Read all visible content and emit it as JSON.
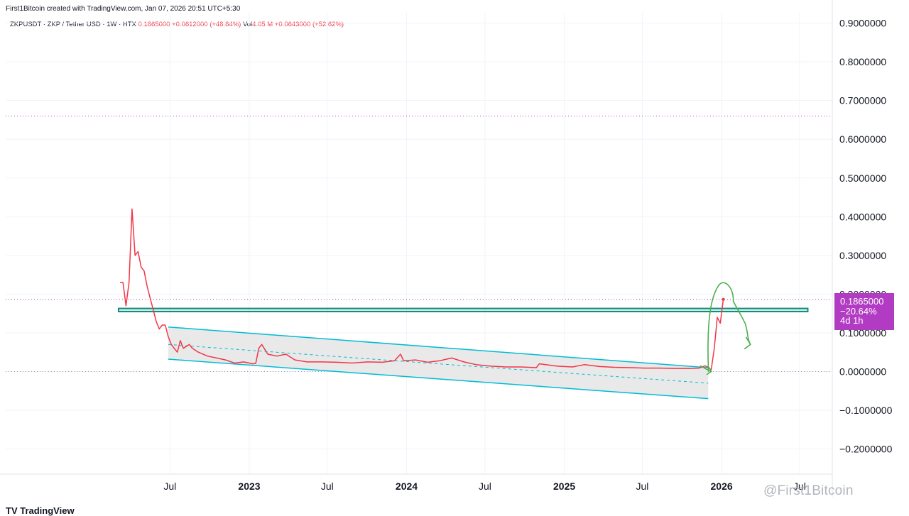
{
  "header": {
    "author_line": "First1Bitcoin created with TradingView.com, Jan 07, 2026 20:51 UTC+5:30",
    "symbol_line": "ZKPUSDT · ZKP / Tether USD · 1W · HTX",
    "last_price": "0.1865000",
    "change": "+0.0612000 (+48.84%)",
    "vol_label": "Vol",
    "vol_value": "4.05 M",
    "vol_change": "+0.0643000 (+52.62%)"
  },
  "price_tag": {
    "price": "0.1865000",
    "change_pct": "−20.64%",
    "countdown": "4d 1h",
    "color": "#b23bc3"
  },
  "colors": {
    "price_line": "#f23645",
    "channel": "#00bcd4",
    "support_zone": "#138a7a",
    "annotation": "#4caf50",
    "dotted_level": "#b23bc3"
  },
  "footer": {
    "logo": "TV TradingView",
    "watermark": "@First1Bitcoin"
  },
  "chart_data": {
    "type": "line",
    "title": "ZKPUSDT · ZKP / Tether USD · 1W · HTX",
    "xlabel": "",
    "ylabel": "",
    "ylim": [
      -0.25,
      0.95
    ],
    "grid": true,
    "y_ticks": [
      "0.9000000",
      "0.8000000",
      "0.7000000",
      "0.6000000",
      "0.5000000",
      "0.4000000",
      "0.3000000",
      "0.2000000",
      "0.1000000",
      "0.0000000",
      "−0.1000000",
      "−0.2000000"
    ],
    "x_ticks": [
      "Jul",
      "2023",
      "Jul",
      "2024",
      "Jul",
      "2025",
      "Jul",
      "2026",
      "Jul"
    ],
    "series": [
      {
        "values": [
          [
            "2022-03-07",
            0.23
          ],
          [
            "2022-03-14",
            0.23
          ],
          [
            "2022-03-21",
            0.17
          ],
          [
            "2022-03-28",
            0.23
          ],
          [
            "2022-04-04",
            0.42
          ],
          [
            "2022-04-11",
            0.3
          ],
          [
            "2022-04-18",
            0.31
          ],
          [
            "2022-04-25",
            0.27
          ],
          [
            "2022-05-02",
            0.26
          ],
          [
            "2022-05-09",
            0.22
          ],
          [
            "2022-05-16",
            0.19
          ],
          [
            "2022-05-23",
            0.16
          ],
          [
            "2022-05-30",
            0.13
          ],
          [
            "2022-06-06",
            0.11
          ],
          [
            "2022-06-13",
            0.12
          ],
          [
            "2022-06-20",
            0.12
          ],
          [
            "2022-06-27",
            0.09
          ],
          [
            "2022-07-04",
            0.07
          ],
          [
            "2022-07-11",
            0.06
          ],
          [
            "2022-07-18",
            0.05
          ],
          [
            "2022-07-25",
            0.08
          ],
          [
            "2022-08-01",
            0.06
          ],
          [
            "2022-08-08",
            0.065
          ],
          [
            "2022-08-15",
            0.07
          ],
          [
            "2022-08-22",
            0.06
          ],
          [
            "2022-09-05",
            0.05
          ],
          [
            "2022-09-26",
            0.04
          ],
          [
            "2022-10-17",
            0.035
          ],
          [
            "2022-11-07",
            0.03
          ],
          [
            "2022-11-28",
            0.022
          ],
          [
            "2022-12-19",
            0.025
          ],
          [
            "2023-01-09",
            0.02
          ],
          [
            "2023-01-16",
            0.021
          ],
          [
            "2023-01-23",
            0.06
          ],
          [
            "2023-01-30",
            0.07
          ],
          [
            "2023-02-13",
            0.045
          ],
          [
            "2023-03-06",
            0.04
          ],
          [
            "2023-03-27",
            0.045
          ],
          [
            "2023-04-17",
            0.03
          ],
          [
            "2023-05-15",
            0.025
          ],
          [
            "2023-06-19",
            0.025
          ],
          [
            "2023-07-24",
            0.024
          ],
          [
            "2023-08-28",
            0.022
          ],
          [
            "2023-10-02",
            0.025
          ],
          [
            "2023-11-06",
            0.024
          ],
          [
            "2023-12-04",
            0.028
          ],
          [
            "2023-12-18",
            0.045
          ],
          [
            "2023-12-25",
            0.028
          ],
          [
            "2024-01-22",
            0.03
          ],
          [
            "2024-02-19",
            0.024
          ],
          [
            "2024-03-18",
            0.028
          ],
          [
            "2024-04-15",
            0.035
          ],
          [
            "2024-05-13",
            0.025
          ],
          [
            "2024-06-10",
            0.018
          ],
          [
            "2024-07-15",
            0.014
          ],
          [
            "2024-08-19",
            0.012
          ],
          [
            "2024-09-23",
            0.012
          ],
          [
            "2024-10-28",
            0.01
          ],
          [
            "2024-11-04",
            0.02
          ],
          [
            "2024-11-25",
            0.017
          ],
          [
            "2024-12-16",
            0.014
          ],
          [
            "2025-01-20",
            0.012
          ],
          [
            "2025-02-17",
            0.018
          ],
          [
            "2025-03-24",
            0.013
          ],
          [
            "2025-04-28",
            0.011
          ],
          [
            "2025-06-02",
            0.01
          ],
          [
            "2025-07-07",
            0.009
          ],
          [
            "2025-08-11",
            0.009
          ],
          [
            "2025-09-15",
            0.008
          ],
          [
            "2025-10-20",
            0.008
          ],
          [
            "2025-11-10",
            0.009
          ],
          [
            "2025-11-24",
            0.015
          ],
          [
            "2025-12-08",
            0.005
          ],
          [
            "2025-12-15",
            0.06
          ],
          [
            "2025-12-22",
            0.14
          ],
          [
            "2025-12-29",
            0.125
          ],
          [
            "2026-01-05",
            0.1865
          ]
        ]
      }
    ],
    "annotations": {
      "support_zone": [
        0.155,
        0.163
      ],
      "channel_upper": [
        [
          "2022-06-27",
          0.115
        ],
        [
          "2025-12-01",
          0.01
        ]
      ],
      "channel_mid": [
        [
          "2022-06-27",
          0.07
        ],
        [
          "2025-12-01",
          -0.03
        ]
      ],
      "channel_lower": [
        [
          "2022-06-27",
          0.032
        ],
        [
          "2025-12-01",
          -0.07
        ]
      ],
      "dotted_levels": [
        0.66,
        0.1865,
        0.0
      ],
      "projection_path": [
        [
          "2025-12-08",
          0.0
        ],
        [
          "2026-01-05",
          0.2
        ],
        [
          "2026-02-09",
          0.15
        ],
        [
          "2026-03-09",
          0.07
        ]
      ]
    }
  }
}
